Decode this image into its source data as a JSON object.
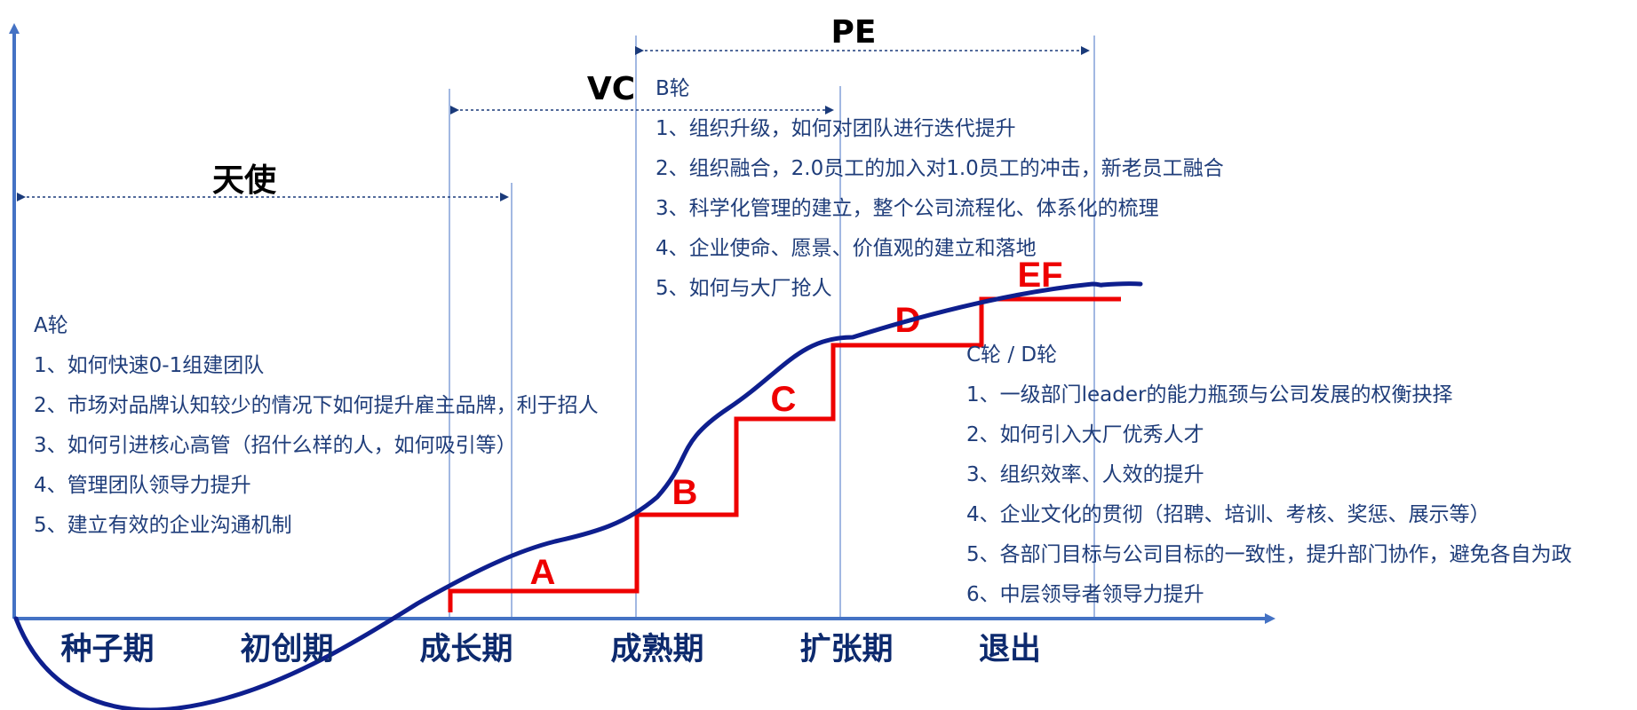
{
  "colors": {
    "axis": "#4472c4",
    "curve": "#0e1f8e",
    "steps": "#ee0000",
    "text": "#1f3d7a",
    "stage_text": "#0d2a6e"
  },
  "stages": [
    "种子期",
    "初创期",
    "成长期",
    "成熟期",
    "扩张期",
    "退出"
  ],
  "rounds": {
    "angel": "天使",
    "vc": "VC",
    "pe": "PE"
  },
  "steps": [
    "A",
    "B",
    "C",
    "D",
    "EF"
  ],
  "a_round": {
    "title": "A轮",
    "items": [
      "1、如何快速0-1组建团队",
      "2、市场对品牌认知较少的情况下如何提升雇主品牌，利于招人",
      "3、如何引进核心高管（招什么样的人，如何吸引等）",
      "4、管理团队领导力提升",
      "5、建立有效的企业沟通机制"
    ]
  },
  "b_round": {
    "title": "B轮",
    "items": [
      "1、组织升级，如何对团队进行迭代提升",
      "2、组织融合，2.0员工的加入对1.0员工的冲击，新老员工融合",
      "3、科学化管理的建立，整个公司流程化、体系化的梳理",
      "4、企业使命、愿景、价值观的建立和落地",
      "5、如何与大厂抢人"
    ]
  },
  "cd_round": {
    "title": "C轮 / D轮",
    "items": [
      "1、一级部门leader的能力瓶颈与公司发展的权衡抉择",
      "2、如何引入大厂优秀人才",
      "3、组织效率、人效的提升",
      "4、企业文化的贯彻（招聘、培训、考核、奖惩、展示等）",
      "5、各部门目标与公司目标的一致性，提升部门协作，避免各自为政",
      "6、中层领导者领导力提升"
    ]
  }
}
